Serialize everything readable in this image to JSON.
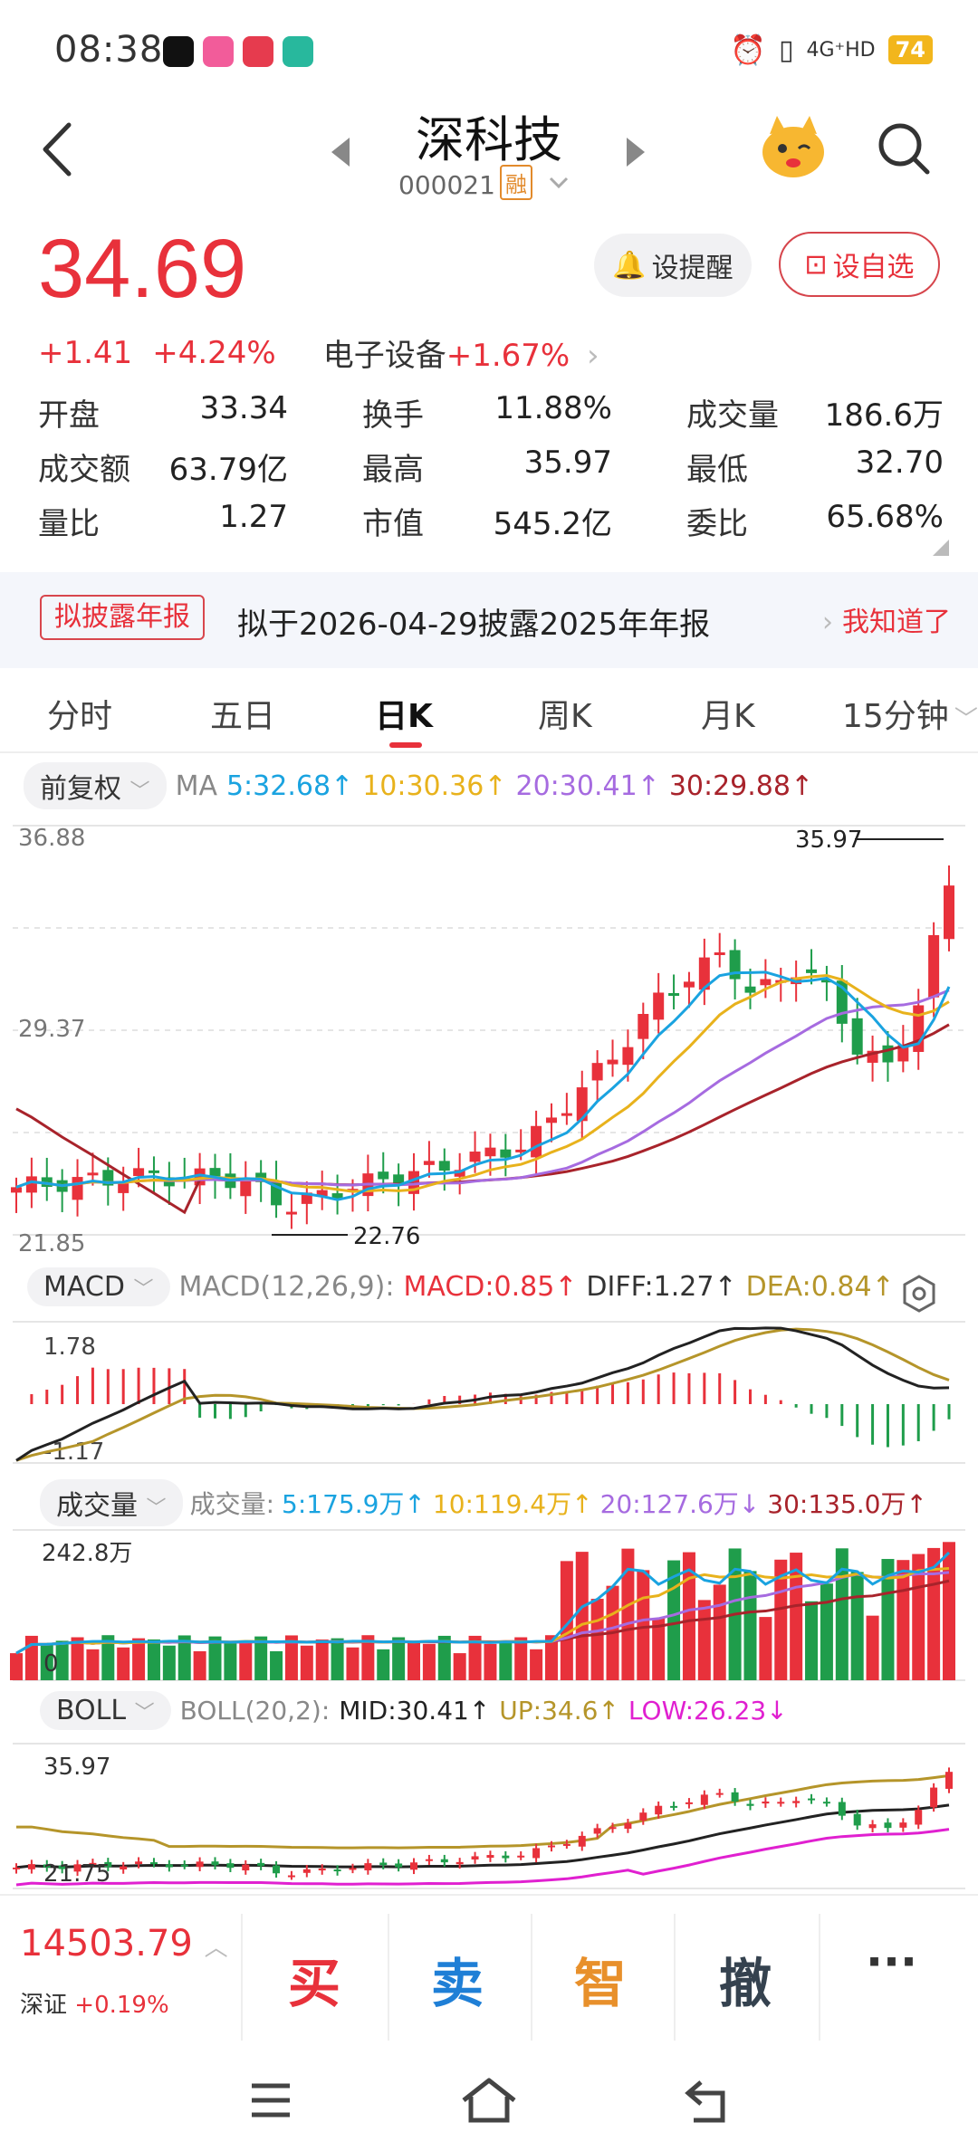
{
  "status_bar": {
    "time": "08:38",
    "network": "4G⁺HD",
    "battery": "74"
  },
  "header": {
    "name": "深科技",
    "code": "000021",
    "badge": "融"
  },
  "price": {
    "last": "34.69",
    "change": "+1.41",
    "change_pct": "+4.24%",
    "sector_name": "电子设备",
    "sector_change": "+1.67%"
  },
  "buttons": {
    "remind": "设提醒",
    "favorite": "设自选"
  },
  "stats": [
    [
      {
        "label": "开盘",
        "value": "33.34",
        "color": "red"
      },
      {
        "label": "换手",
        "value": "11.88%",
        "color": "black"
      },
      {
        "label": "成交量",
        "value": "186.6万",
        "color": "black"
      }
    ],
    [
      {
        "label": "成交额",
        "value": "63.79亿",
        "color": "black"
      },
      {
        "label": "最高",
        "value": "35.97",
        "color": "red"
      },
      {
        "label": "最低",
        "value": "32.70",
        "color": "green"
      }
    ],
    [
      {
        "label": "量比",
        "value": "1.27",
        "color": "black"
      },
      {
        "label": "市值",
        "value": "545.2亿",
        "color": "black"
      },
      {
        "label": "委比",
        "value": "65.68%",
        "color": "red"
      }
    ]
  ],
  "notice": {
    "tag": "拟披露年报",
    "text": "拟于2026-04-29披露2025年年报",
    "action": "我知道了"
  },
  "tabs": [
    "分时",
    "五日",
    "日K",
    "周K",
    "月K",
    "15分钟"
  ],
  "active_tab": "日K",
  "kline": {
    "adjust": "前复权",
    "ma_label": "MA",
    "ma": [
      {
        "label": "5:32.68↑",
        "color": "#1aa3e0"
      },
      {
        "label": "10:30.36↑",
        "color": "#e8b21c"
      },
      {
        "label": "20:30.41↑",
        "color": "#a66be0"
      },
      {
        "label": "30:29.88↑",
        "color": "#a8232b"
      }
    ],
    "y_max": "36.88",
    "y_mid": "29.37",
    "y_min": "21.85",
    "high_marker": "35.97",
    "low_marker": "22.76"
  },
  "macd": {
    "selector": "MACD",
    "params": "MACD(12,26,9):",
    "macd": "MACD:0.85↑",
    "diff": "DIFF:1.27↑",
    "dea": "DEA:0.84↑",
    "y_max": "1.78",
    "y_min": "-1.17"
  },
  "volume": {
    "selector": "成交量",
    "label": "成交量:",
    "ma5": "5:175.9万↑",
    "ma10": "10:119.4万↑",
    "ma20": "20:127.6万↓",
    "ma30": "30:135.0万↑",
    "y_max": "242.8万",
    "y_min": "0"
  },
  "boll": {
    "selector": "BOLL",
    "params": "BOLL(20,2):",
    "mid": "MID:30.41↑",
    "up": "UP:34.6↑",
    "low": "LOW:26.23↓",
    "y_max": "35.97",
    "y_min": "21.75"
  },
  "bottom": {
    "index_value": "14503.79",
    "index_name": "深证",
    "index_change": "+0.19%",
    "buy": "买",
    "sell": "卖",
    "smart": "智",
    "cancel": "撤",
    "more": "···"
  },
  "colors": {
    "up": "#e8313b",
    "down": "#1f9d4b",
    "ma5": "#1aa3e0",
    "ma10": "#e8b21c",
    "ma20": "#a66be0",
    "ma30": "#a8232b"
  }
}
